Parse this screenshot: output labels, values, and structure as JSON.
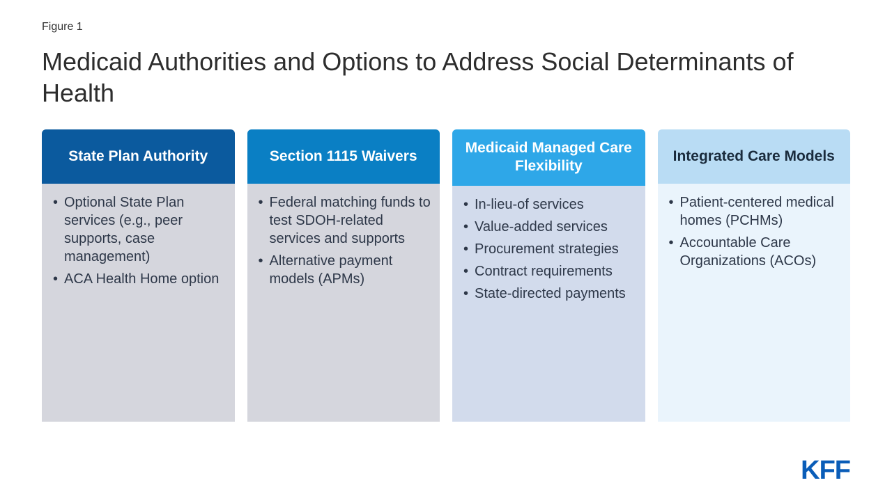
{
  "figure_label": "Figure 1",
  "title": "Medicaid Authorities and Options to Address Social Determinants of Health",
  "logo": {
    "text": "KFF",
    "color": "#0a5db8"
  },
  "layout": {
    "background": "#ffffff",
    "column_gap": 18,
    "columns_height": 420,
    "title_fontsize": 36,
    "title_color": "#2d2d2d",
    "figure_label_fontsize": 16,
    "header_fontsize": 21,
    "bullet_fontsize": 20,
    "bullet_color": "#2d3748"
  },
  "columns": [
    {
      "header": "State Plan Authority",
      "header_bg": "#0b5a9e",
      "header_text_color": "#ffffff",
      "body_bg": "#d5d6dd",
      "items": [
        "Optional State Plan services (e.g., peer supports, case management)",
        "ACA Health Home option"
      ]
    },
    {
      "header": "Section 1115 Waivers",
      "header_bg": "#0a7fc4",
      "header_text_color": "#ffffff",
      "body_bg": "#d5d6dd",
      "items": [
        "Federal matching funds to test SDOH-related services and supports",
        "Alternative payment models (APMs)"
      ]
    },
    {
      "header": "Medicaid Managed Care Flexibility",
      "header_bg": "#2ea7e8",
      "header_text_color": "#ffffff",
      "body_bg": "#d2dbec",
      "items": [
        "In-lieu-of services",
        "Value-added services",
        "Procurement strategies",
        "Contract requirements",
        "State-directed payments"
      ]
    },
    {
      "header": "Integrated Care Models",
      "header_bg": "#b9dcf4",
      "header_text_color": "#1a2b3c",
      "body_bg": "#eaf4fc",
      "items": [
        "Patient-centered medical homes (PCHMs)",
        "Accountable Care Organizations (ACOs)"
      ]
    }
  ]
}
